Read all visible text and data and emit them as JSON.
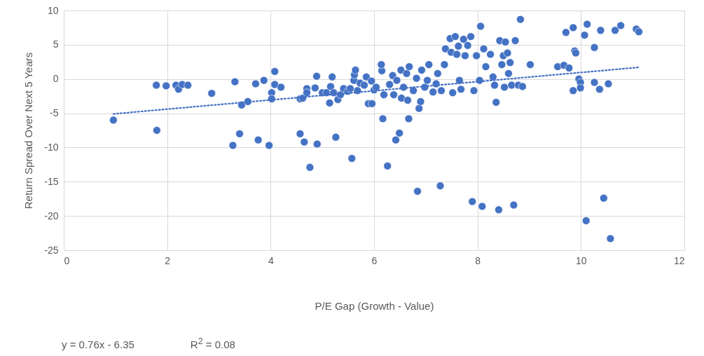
{
  "chart_data": {
    "type": "scatter",
    "xlabel": "P/E Gap (Growth - Value)",
    "ylabel": "Return Spread Over Next 5 Years",
    "xlim": [
      0,
      12
    ],
    "xticks": [
      0,
      2,
      4,
      6,
      8,
      10,
      12
    ],
    "ylim": [
      -25,
      10
    ],
    "yticks": [
      -25,
      -20,
      -15,
      -10,
      -5,
      0,
      5,
      10
    ],
    "grid": true,
    "series": [
      {
        "color": "#4472c4",
        "marker": "circle",
        "x": [
          0.96,
          1.79,
          1.8,
          1.98,
          2.17,
          2.22,
          2.29,
          2.4,
          2.86,
          3.31,
          3.27,
          3.4,
          3.44,
          3.56,
          3.71,
          3.76,
          3.87,
          3.97,
          4.02,
          4.02,
          4.08,
          4.08,
          4.2,
          4.57,
          4.57,
          4.62,
          4.65,
          4.7,
          4.7,
          4.76,
          4.86,
          4.89,
          4.9,
          5.0,
          5.08,
          5.14,
          5.19,
          5.16,
          5.22,
          5.26,
          5.3,
          5.35,
          5.41,
          5.49,
          5.54,
          5.57,
          5.61,
          5.62,
          5.64,
          5.68,
          5.73,
          5.81,
          5.85,
          5.89,
          5.95,
          5.96,
          6.0,
          6.04,
          6.15,
          6.17,
          6.14,
          6.19,
          6.26,
          6.3,
          6.36,
          6.38,
          6.42,
          6.44,
          6.49,
          6.52,
          6.53,
          6.57,
          6.63,
          6.65,
          6.67,
          6.68,
          6.76,
          6.82,
          6.84,
          6.87,
          6.9,
          6.92,
          6.98,
          7.03,
          7.06,
          7.14,
          7.2,
          7.23,
          7.28,
          7.3,
          7.36,
          7.38,
          7.47,
          7.49,
          7.52,
          7.57,
          7.6,
          7.63,
          7.65,
          7.68,
          7.73,
          7.76,
          7.81,
          7.87,
          7.9,
          7.93,
          7.98,
          8.04,
          8.06,
          8.09,
          8.12,
          8.16,
          8.25,
          8.3,
          8.33,
          8.36,
          8.41,
          8.43,
          8.47,
          8.5,
          8.52,
          8.54,
          8.58,
          8.6,
          8.63,
          8.66,
          8.7,
          8.73,
          8.79,
          8.83,
          8.87,
          9.02,
          9.55,
          9.67,
          9.71,
          9.77,
          9.85,
          9.85,
          9.88,
          9.9,
          9.96,
          9.99,
          9.99,
          10.07,
          10.1,
          10.12,
          10.26,
          10.26,
          10.36,
          10.38,
          10.44,
          10.53,
          10.57,
          10.66,
          10.77,
          11.07,
          11.12
        ],
        "values": [
          -6.0,
          -0.9,
          -7.5,
          -1.0,
          -0.9,
          -1.5,
          -0.8,
          -0.9,
          -2.1,
          -0.4,
          -9.7,
          -8.0,
          -3.8,
          -3.3,
          -0.7,
          -8.9,
          -0.2,
          -9.7,
          -2.0,
          -2.9,
          1.1,
          -0.8,
          -1.2,
          -8.0,
          -2.9,
          -2.8,
          -9.2,
          -1.4,
          -2.0,
          -12.9,
          -1.3,
          0.4,
          -9.5,
          -2.0,
          -2.0,
          -3.5,
          0.3,
          -1.1,
          -2.0,
          -8.5,
          -3.0,
          -2.3,
          -1.4,
          -1.8,
          -1.4,
          -11.6,
          -0.2,
          0.6,
          1.3,
          -1.7,
          -0.6,
          -0.9,
          0.3,
          -3.6,
          -0.3,
          -3.6,
          -1.6,
          -1.2,
          1.2,
          -5.8,
          2.1,
          -2.3,
          -12.7,
          -0.8,
          0.5,
          -2.3,
          -8.9,
          -0.2,
          -7.9,
          1.3,
          -2.8,
          -1.2,
          0.8,
          -3.1,
          -5.8,
          1.8,
          -1.7,
          0.1,
          -16.4,
          -4.3,
          -3.3,
          1.3,
          -1.2,
          -0.2,
          2.1,
          -1.9,
          -0.7,
          0.8,
          -15.6,
          -1.7,
          2.1,
          4.4,
          5.9,
          3.9,
          -2.0,
          6.2,
          3.6,
          4.8,
          -0.2,
          -1.5,
          5.8,
          3.4,
          4.9,
          6.2,
          -17.9,
          -1.7,
          3.4,
          -0.2,
          7.7,
          -18.6,
          4.4,
          1.8,
          3.6,
          0.3,
          -0.9,
          -3.4,
          -19.1,
          5.6,
          2.1,
          3.4,
          -1.2,
          5.4,
          3.8,
          0.8,
          2.4,
          -0.9,
          -18.4,
          5.6,
          -0.9,
          8.7,
          -1.1,
          2.1,
          1.8,
          2.0,
          6.8,
          1.6,
          7.5,
          -1.7,
          4.1,
          3.8,
          0,
          -0.5,
          -1.3,
          6.4,
          -20.7,
          8.0,
          4.6,
          -0.5,
          -1.5,
          7.1,
          -17.4,
          -0.7,
          -23.3,
          7.1,
          7.8,
          7.3,
          6.9
        ]
      },
      {
        "type": "line",
        "color": "#4472c4",
        "line_style": "dotted",
        "x": [
          0.96,
          11.12
        ],
        "values": [
          -5.1,
          1.7
        ]
      }
    ],
    "annotations": [
      "y = 0.76x - 6.35",
      "R$^{2}$ = 0.08"
    ]
  }
}
